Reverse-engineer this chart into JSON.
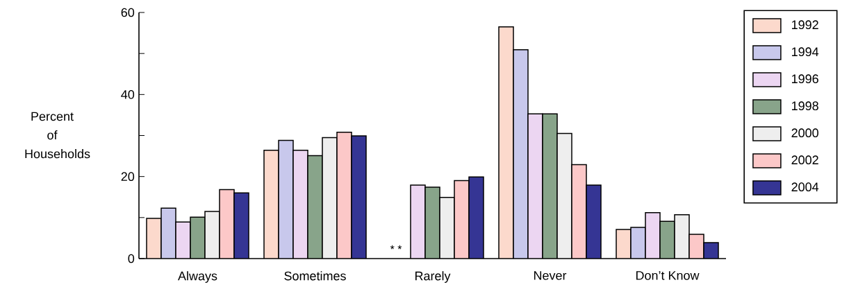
{
  "chart_data": {
    "type": "bar",
    "ylabel": "Percent of Households",
    "categories": [
      "Always",
      "Sometimes",
      "Rarely",
      "Never",
      "Don’t Know"
    ],
    "series": [
      {
        "name": "1992",
        "color": "#fcd9cc",
        "values": [
          9.8,
          26.4,
          null,
          56.5,
          7.1
        ]
      },
      {
        "name": "1994",
        "color": "#c8c8ec",
        "values": [
          12.3,
          28.8,
          null,
          50.9,
          7.6
        ]
      },
      {
        "name": "1996",
        "color": "#ecd6f2",
        "values": [
          8.9,
          26.4,
          17.9,
          35.3,
          11.2
        ]
      },
      {
        "name": "1998",
        "color": "#88a48a",
        "values": [
          10.1,
          25.1,
          17.4,
          35.3,
          9.1
        ]
      },
      {
        "name": "2000",
        "color": "#eeeeee",
        "values": [
          11.5,
          29.5,
          14.9,
          30.5,
          10.7
        ]
      },
      {
        "name": "2002",
        "color": "#fcc8c8",
        "values": [
          16.8,
          30.8,
          19.0,
          22.9,
          5.9
        ]
      },
      {
        "name": "2004",
        "color": "#353594",
        "values": [
          16.0,
          29.9,
          19.9,
          17.9,
          3.9
        ]
      }
    ],
    "ylim": [
      0,
      60
    ],
    "yticks": [
      0,
      {
        "value": 10,
        "label": null
      },
      20,
      {
        "value": 30,
        "label": null
      },
      40,
      {
        "value": 50,
        "label": null
      },
      60
    ],
    "annotations": [
      {
        "text": "* *",
        "x": "Rarely",
        "y": 0
      }
    ],
    "legend": "right",
    "grid": false
  }
}
